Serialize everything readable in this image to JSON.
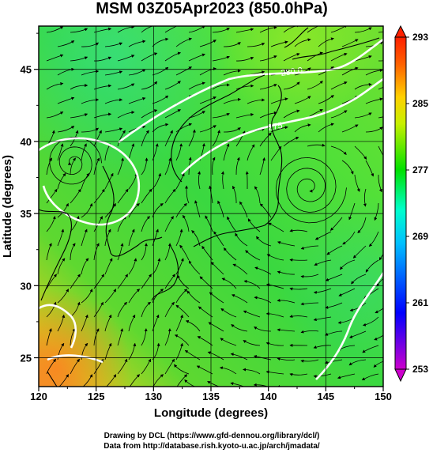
{
  "title": "MSM 03Z05Apr2023 (850.0hPa)",
  "x_axis": {
    "label": "Longitude (degrees)",
    "range": [
      120,
      150
    ],
    "ticks": [
      "120",
      "125",
      "130",
      "135",
      "140",
      "145",
      "150"
    ]
  },
  "y_axis": {
    "label": "Latitude  (degrees)",
    "range": [
      23,
      48
    ],
    "ticks": [
      "25",
      "30",
      "35",
      "40",
      "45"
    ]
  },
  "colorbar": {
    "range": [
      253,
      293
    ],
    "ticks": [
      "253",
      "261",
      "269",
      "277",
      "285",
      "293"
    ],
    "colors": [
      "#cc00cc",
      "#0000ff",
      "#00c0ff",
      "#00ffcc",
      "#00e000",
      "#c8f000",
      "#ffd000",
      "#ff6000",
      "#ff2000"
    ]
  },
  "contour_labels": [
    "280.0",
    "275"
  ],
  "footer": {
    "line1": "Drawing by DCL (https://www.gfd-dennou.org/library/dcl/)",
    "line2": "Data from http://database.rish.kyoto-u.ac.jp/arch/jmadata/"
  }
}
